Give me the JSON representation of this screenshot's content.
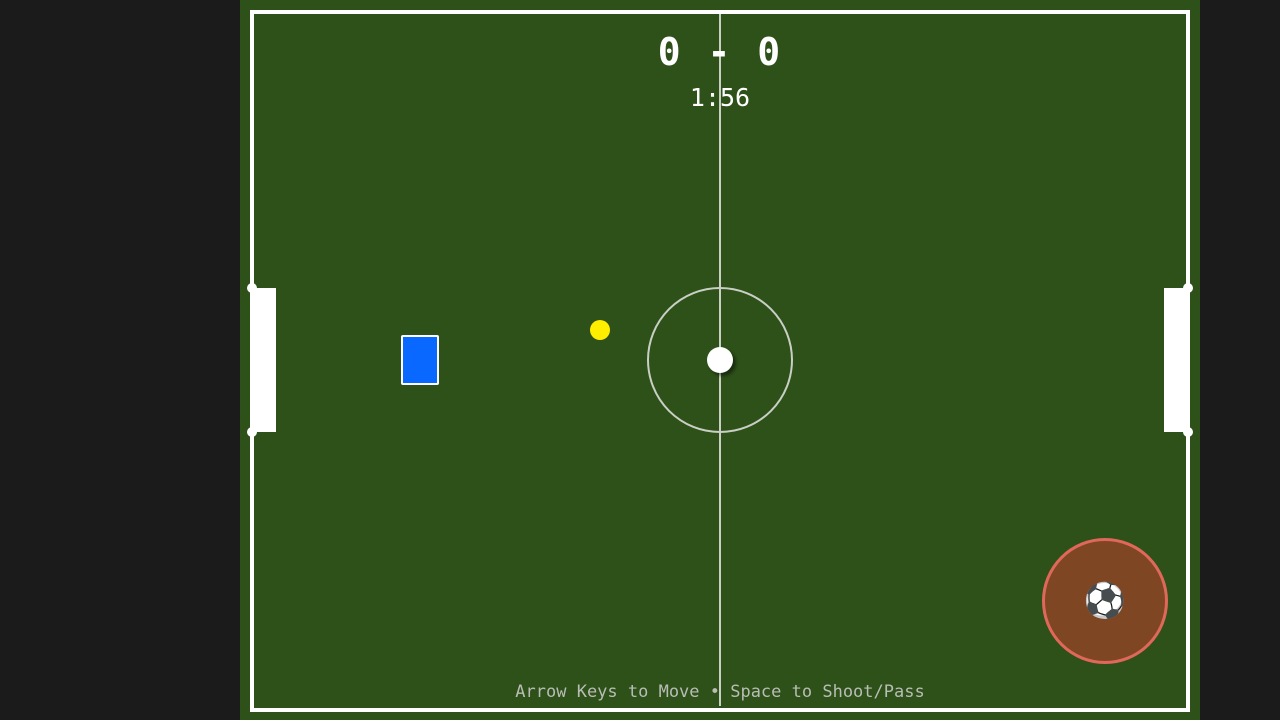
{
  "scoreboard": {
    "score": "0 - 0",
    "time": "1:56"
  },
  "controls": {
    "instructions": "Arrow Keys to Move • Space to Shoot/Pass",
    "action_button_icon": "⚽"
  },
  "colors": {
    "pitch": "#2d5119",
    "player": "#0868ff",
    "marker": "#ffee00",
    "action_button_fill": "#7f4623",
    "action_button_ring": "#e0685a",
    "backdrop": "#1b1b1b"
  }
}
